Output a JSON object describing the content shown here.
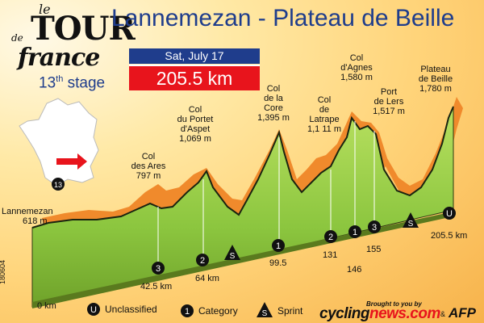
{
  "logo": {
    "le": "le",
    "tour": "TOUR",
    "de": "de",
    "france": "france"
  },
  "title": "Lannemezan - Plateau de Beille",
  "stage": {
    "number": "13",
    "suffix": "th",
    "word": "stage"
  },
  "date": "Sat, July 17",
  "distance": "205.5 km",
  "map_marker": "13",
  "climbs": [
    {
      "name": [
        "Col",
        "des  Ares"
      ],
      "altitude": "797 m",
      "category": "3",
      "km": "42.5 km"
    },
    {
      "name": [
        "Col",
        "du Portet",
        "d'Aspet"
      ],
      "altitude": "1,069 m",
      "category": "2",
      "km": "64 km"
    },
    {
      "name": [
        "Col",
        "de la",
        "Core"
      ],
      "altitude": "1,395 m",
      "category": "1",
      "km": "99.5"
    },
    {
      "name": [
        "Col",
        "de",
        "Latrape"
      ],
      "altitude": "1,1 11 m",
      "category": "2",
      "km": "131"
    },
    {
      "name": [
        "Col",
        "d'Agnes"
      ],
      "altitude": "1,580 m",
      "category": "1",
      "km": "146"
    },
    {
      "name": [
        "Port",
        "de Lers"
      ],
      "altitude": "1,517 m",
      "category": "3",
      "km": "155"
    },
    {
      "name": [
        "Plateau",
        "de Beille"
      ],
      "altitude": "1,780 m",
      "category": "U",
      "km": "205.5 km"
    }
  ],
  "start": {
    "name": "Lannemezan",
    "altitude": "618 m",
    "km": "0 km"
  },
  "sprints": [
    {
      "symbol": "S"
    },
    {
      "symbol": "S"
    }
  ],
  "legend": [
    {
      "symbol": "U",
      "label": "Unclassified"
    },
    {
      "symbol": "1",
      "label": "Category"
    },
    {
      "symbol": "S",
      "label": "Sprint"
    }
  ],
  "side_code": "180604",
  "credit": {
    "brought": "Brought to you by",
    "cycling": "cycling",
    "news": "news.com",
    "amp": "&",
    "afp": "AFP"
  },
  "colors": {
    "title": "#1f3d8c",
    "red": "#e8141c",
    "green": "#8cc63f",
    "shadow": "#f08a2c"
  }
}
